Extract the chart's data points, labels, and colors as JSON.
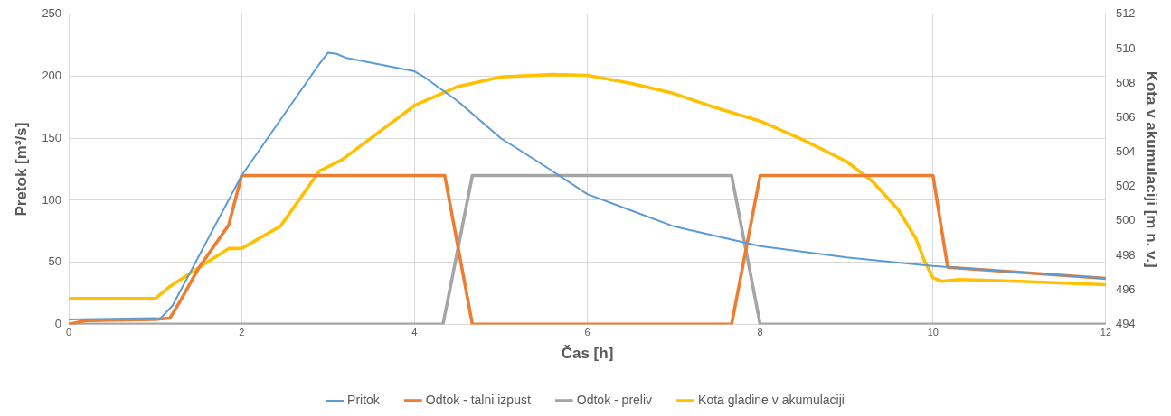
{
  "chart_data": {
    "type": "line",
    "xlabel": "Čas [h]",
    "ylabel": "Pretok [m³/s]",
    "y2label": "Kota v akumulaciji [m n. v.]",
    "xlim": [
      0,
      12
    ],
    "xticks": [
      0,
      2,
      4,
      6,
      8,
      10,
      12
    ],
    "ylim": [
      0,
      250
    ],
    "yticks": [
      0,
      50,
      100,
      150,
      200,
      250
    ],
    "y2lim": [
      494,
      512
    ],
    "y2ticks": [
      494,
      496,
      498,
      500,
      502,
      504,
      506,
      508,
      510,
      512
    ],
    "grid": true,
    "legend": "bottom",
    "marker": "none",
    "line_style": "solid",
    "series": [
      {
        "name": "Pritok",
        "color": "#5b9bd5",
        "x": [
          0,
          1,
          1.05,
          1.2,
          2,
          2.5,
          2.9,
          3,
          3.1,
          3.2,
          4,
          4.1,
          4.5,
          5,
          5.5,
          6,
          6.5,
          7,
          7.5,
          8,
          9,
          10,
          11,
          12
        ],
        "values": [
          4,
          5,
          4,
          15,
          120,
          170,
          210,
          219,
          218,
          215,
          204,
          200,
          180,
          150,
          128,
          105,
          92,
          79,
          71,
          63,
          54,
          47,
          42,
          37
        ]
      },
      {
        "name": "Odtok - talni izpust",
        "color": "#ed7d31",
        "x": [
          0,
          0.2,
          1,
          1.17,
          1.3,
          1.5,
          1.85,
          2,
          4.35,
          4.67,
          7.67,
          8,
          10,
          10.17,
          11,
          12
        ],
        "values": [
          0,
          3,
          4,
          5,
          20,
          45,
          80,
          120,
          120,
          0,
          0,
          120,
          120,
          46,
          42,
          37
        ]
      },
      {
        "name": "Odtok - preliv",
        "color": "#a5a5a5",
        "x": [
          0,
          4.33,
          4.67,
          7.67,
          8,
          12
        ],
        "values": [
          0,
          0,
          120,
          120,
          0,
          0
        ]
      },
      {
        "name": "Kota gladine v akumulaciji",
        "color": "#ffc000",
        "axis": "y2",
        "x": [
          0,
          1,
          1.17,
          1.6,
          1.85,
          2,
          2.45,
          2.9,
          3.16,
          4,
          4.5,
          5,
          5.6,
          6,
          6.5,
          7,
          7.5,
          8,
          8.5,
          9,
          9.3,
          9.6,
          9.8,
          9.9,
          10,
          10.1,
          10.3,
          11,
          12
        ],
        "values": [
          495.5,
          495.5,
          496.2,
          497.6,
          498.4,
          498.4,
          499.7,
          502.9,
          503.55,
          506.7,
          507.8,
          508.36,
          508.5,
          508.45,
          508,
          507.4,
          506.55,
          505.8,
          504.7,
          503.45,
          502.3,
          500.65,
          499,
          497.7,
          496.7,
          496.5,
          496.6,
          496.5,
          496.3
        ]
      }
    ]
  }
}
